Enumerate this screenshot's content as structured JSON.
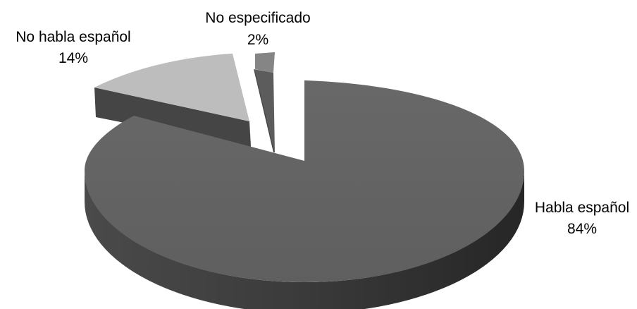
{
  "chart_data": {
    "type": "pie",
    "variant": "3d-exploded",
    "slices": [
      {
        "label": "Habla español",
        "percent_label": "84%",
        "value": 84,
        "color": "#5f5f5f"
      },
      {
        "label": "No habla español",
        "percent_label": "14%",
        "value": 14,
        "color": "#bdbdbd"
      },
      {
        "label": "No especificado",
        "percent_label": "2%",
        "value": 2,
        "color": "#858585"
      }
    ],
    "legend": "none"
  }
}
